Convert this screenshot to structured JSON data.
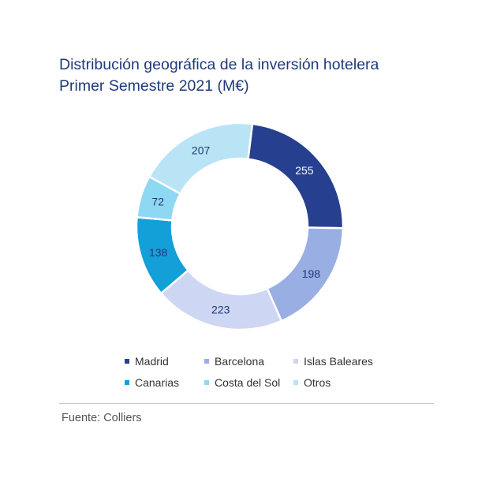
{
  "chart_data": {
    "type": "pie",
    "title": "Distribución geográfica de la inversión hotelera",
    "subtitle": "Primer Semestre 2021 (M€)",
    "categories": [
      "Madrid",
      "Barcelona",
      "Islas Baleares",
      "Canarias",
      "Costa del Sol",
      "Otros"
    ],
    "values": [
      255,
      198,
      223,
      138,
      72,
      207
    ],
    "colors": [
      "#263f8f",
      "#99aee3",
      "#cdd6f2",
      "#13a0d8",
      "#8fd8f4",
      "#b8e4f6"
    ],
    "label_colors": [
      "#ffffff",
      "#1f3a7a",
      "#1f3a7a",
      "#1f3a7a",
      "#1f3a7a",
      "#1f3a7a"
    ],
    "legend_position": "bottom",
    "style": "donut"
  },
  "footer": {
    "source": "Fuente: Colliers"
  }
}
